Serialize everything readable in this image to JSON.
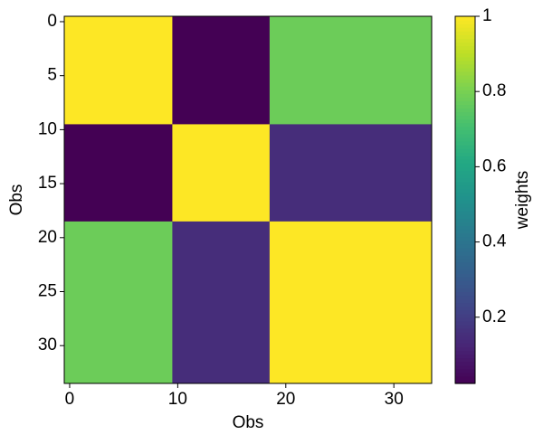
{
  "chart_data": {
    "type": "heatmap",
    "x_label": "Obs",
    "y_label": "Obs",
    "x_edges": [
      -0.5,
      9.5,
      18.5,
      33.5
    ],
    "y_edges": [
      -0.5,
      9.5,
      18.5,
      33.5
    ],
    "values": [
      [
        1.0,
        0.024,
        0.78
      ],
      [
        0.024,
        1.0,
        0.15
      ],
      [
        0.78,
        0.15,
        1.0
      ]
    ],
    "xlim": [
      -0.5,
      33.5
    ],
    "ylim": [
      33.5,
      -0.5
    ],
    "xticks": [
      0,
      10,
      20,
      30
    ],
    "yticks": [
      0,
      5,
      10,
      15,
      20,
      25,
      30
    ],
    "colormap": "viridis",
    "clim": [
      0.024,
      1.0
    ],
    "colorbar_ticks": [
      0.2,
      0.4,
      0.6,
      0.8,
      1.0
    ],
    "colorbar_label": "weights"
  }
}
